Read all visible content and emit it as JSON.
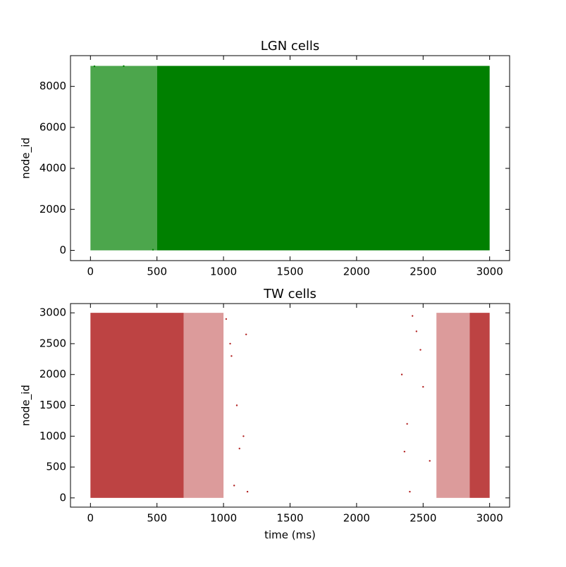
{
  "chart_data": [
    {
      "type": "scatter",
      "title": "LGN cells",
      "ylabel": "node_id",
      "color": "#008000",
      "xlim": [
        -150,
        3150
      ],
      "ylim": [
        -500,
        9500
      ],
      "xticks": [
        0,
        500,
        1000,
        1500,
        2000,
        2500,
        3000
      ],
      "yticks": [
        0,
        2000,
        4000,
        6000,
        8000
      ],
      "regions": [
        {
          "x": [
            0,
            500
          ],
          "y": [
            0,
            9000
          ],
          "opacity": 0.7
        },
        {
          "x": [
            500,
            3000
          ],
          "y": [
            0,
            9000
          ],
          "opacity": 1
        }
      ],
      "x": [
        520,
        30,
        470,
        250
      ],
      "y": [
        50,
        8980,
        30,
        8990
      ]
    },
    {
      "type": "scatter",
      "title": "TW cells",
      "xlabel": "time (ms)",
      "ylabel": "node_id",
      "color": "#b22222",
      "xlim": [
        -150,
        3150
      ],
      "ylim": [
        -150,
        3150
      ],
      "xticks": [
        0,
        500,
        1000,
        1500,
        2000,
        2500,
        3000
      ],
      "yticks": [
        0,
        500,
        1000,
        1500,
        2000,
        2500,
        3000
      ],
      "regions": [
        {
          "x": [
            0,
            700
          ],
          "y": [
            0,
            3000
          ],
          "opacity": 0.85
        },
        {
          "x": [
            700,
            1000
          ],
          "y": [
            0,
            3000
          ],
          "opacity": 0.45
        },
        {
          "x": [
            2600,
            2850
          ],
          "y": [
            0,
            3000
          ],
          "opacity": 0.45
        },
        {
          "x": [
            2850,
            3000
          ],
          "y": [
            0,
            3000
          ],
          "opacity": 0.85
        }
      ],
      "x": [
        1020,
        1060,
        1100,
        1150,
        1170,
        1180,
        1120,
        1080,
        1050,
        2340,
        2380,
        2420,
        2450,
        2500,
        2550,
        2400,
        2360,
        2480
      ],
      "y": [
        2900,
        2300,
        1500,
        1000,
        2650,
        100,
        800,
        200,
        2500,
        2000,
        1200,
        2950,
        2700,
        1800,
        600,
        100,
        750,
        2400
      ]
    }
  ]
}
